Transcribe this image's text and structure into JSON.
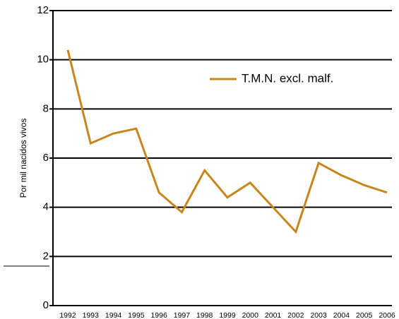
{
  "chart_data": {
    "type": "line",
    "y_label": "Por mil nacidos vivos",
    "categories": [
      "1992",
      "1993",
      "1994",
      "1995",
      "1996",
      "1997",
      "1998",
      "1999",
      "2000",
      "2001",
      "2002",
      "2003",
      "2004",
      "2005",
      "2006"
    ],
    "series": [
      {
        "name": "T.M.N. excl. malf.",
        "color": "#c8861a",
        "values": [
          10.4,
          6.6,
          7.0,
          7.2,
          4.6,
          3.8,
          5.5,
          4.4,
          5.0,
          4.0,
          3.0,
          5.8,
          5.3,
          4.9,
          4.6
        ]
      }
    ],
    "ylim": [
      0,
      12
    ],
    "yticks": [
      0,
      2,
      4,
      6,
      8,
      10,
      12
    ],
    "grid": true,
    "legend": "upper right"
  }
}
